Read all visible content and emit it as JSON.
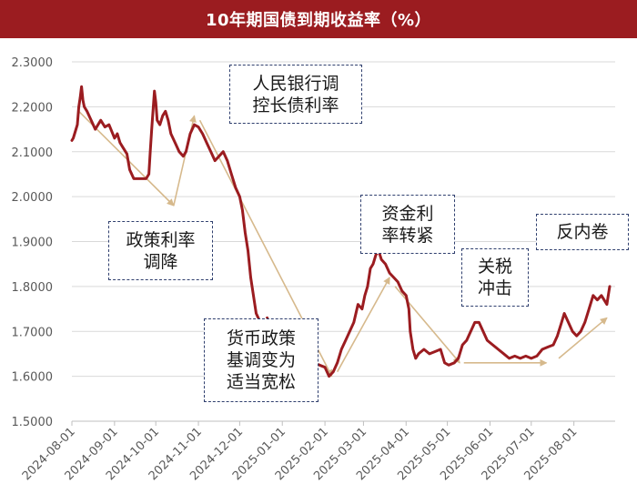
{
  "chart_data": {
    "type": "line",
    "title": "10年期国债到期收益率（%）",
    "xlabel": "",
    "ylabel": "",
    "ylim": [
      1.5,
      2.3
    ],
    "yticks": [
      "1.5000",
      "1.6000",
      "1.7000",
      "1.8000",
      "1.9000",
      "2.0000",
      "2.1000",
      "2.2000",
      "2.3000"
    ],
    "xticks": [
      "2024-08-01",
      "2024-09-01",
      "2024-10-01",
      "2024-11-01",
      "2024-12-01",
      "2025-01-01",
      "2025-02-01",
      "2025-03-01",
      "2025-04-01",
      "2025-05-01",
      "2025-06-01",
      "2025-07-01",
      "2025-08-01"
    ],
    "grid": "horizontal",
    "legend": "none",
    "series": [
      {
        "color": "#9b1c20",
        "points": [
          [
            "2024-08-01",
            2.125
          ],
          [
            "2024-08-02",
            2.13
          ],
          [
            "2024-08-03",
            2.14
          ],
          [
            "2024-08-05",
            2.16
          ],
          [
            "2024-08-06",
            2.2
          ],
          [
            "2024-08-07",
            2.22
          ],
          [
            "2024-08-08",
            2.245
          ],
          [
            "2024-08-09",
            2.215
          ],
          [
            "2024-08-10",
            2.2
          ],
          [
            "2024-08-12",
            2.19
          ],
          [
            "2024-08-15",
            2.17
          ],
          [
            "2024-08-18",
            2.15
          ],
          [
            "2024-08-22",
            2.17
          ],
          [
            "2024-08-25",
            2.155
          ],
          [
            "2024-08-28",
            2.16
          ],
          [
            "2024-09-01",
            2.13
          ],
          [
            "2024-09-03",
            2.14
          ],
          [
            "2024-09-05",
            2.12
          ],
          [
            "2024-09-07",
            2.11
          ],
          [
            "2024-09-10",
            2.095
          ],
          [
            "2024-09-12",
            2.06
          ],
          [
            "2024-09-15",
            2.04
          ],
          [
            "2024-09-20",
            2.04
          ],
          [
            "2024-09-24",
            2.04
          ],
          [
            "2024-09-26",
            2.05
          ],
          [
            "2024-09-27",
            2.1
          ],
          [
            "2024-09-28",
            2.15
          ],
          [
            "2024-09-30",
            2.235
          ],
          [
            "2024-10-01",
            2.21
          ],
          [
            "2024-10-02",
            2.17
          ],
          [
            "2024-10-04",
            2.16
          ],
          [
            "2024-10-06",
            2.18
          ],
          [
            "2024-10-08",
            2.19
          ],
          [
            "2024-10-10",
            2.17
          ],
          [
            "2024-10-12",
            2.14
          ],
          [
            "2024-10-15",
            2.12
          ],
          [
            "2024-10-18",
            2.1
          ],
          [
            "2024-10-21",
            2.09
          ],
          [
            "2024-10-23",
            2.1
          ],
          [
            "2024-10-26",
            2.14
          ],
          [
            "2024-10-29",
            2.16
          ],
          [
            "2024-11-01",
            2.155
          ],
          [
            "2024-11-04",
            2.14
          ],
          [
            "2024-11-07",
            2.12
          ],
          [
            "2024-11-10",
            2.1
          ],
          [
            "2024-11-13",
            2.08
          ],
          [
            "2024-11-16",
            2.09
          ],
          [
            "2024-11-19",
            2.1
          ],
          [
            "2024-11-22",
            2.08
          ],
          [
            "2024-11-25",
            2.05
          ],
          [
            "2024-11-28",
            2.02
          ],
          [
            "2024-12-01",
            2.0
          ],
          [
            "2024-12-03",
            1.97
          ],
          [
            "2024-12-05",
            1.92
          ],
          [
            "2024-12-07",
            1.88
          ],
          [
            "2024-12-09",
            1.82
          ],
          [
            "2024-12-11",
            1.78
          ],
          [
            "2024-12-13",
            1.74
          ],
          [
            "2024-12-16",
            1.72
          ],
          [
            "2024-12-19",
            1.7
          ],
          [
            "2024-12-21",
            1.73
          ],
          [
            "2024-12-24",
            1.7
          ],
          [
            "2024-12-27",
            1.68
          ],
          [
            "2024-12-30",
            1.67
          ],
          [
            "2025-01-02",
            1.63
          ],
          [
            "2025-01-04",
            1.64
          ],
          [
            "2025-01-07",
            1.66
          ],
          [
            "2025-01-10",
            1.64
          ],
          [
            "2025-01-13",
            1.65
          ],
          [
            "2025-01-16",
            1.67
          ],
          [
            "2025-01-19",
            1.66
          ],
          [
            "2025-01-22",
            1.65
          ],
          [
            "2025-01-25",
            1.63
          ],
          [
            "2025-01-28",
            1.625
          ],
          [
            "2025-02-01",
            1.62
          ],
          [
            "2025-02-04",
            1.6
          ],
          [
            "2025-02-07",
            1.61
          ],
          [
            "2025-02-10",
            1.63
          ],
          [
            "2025-02-13",
            1.66
          ],
          [
            "2025-02-16",
            1.68
          ],
          [
            "2025-02-19",
            1.7
          ],
          [
            "2025-02-22",
            1.72
          ],
          [
            "2025-02-25",
            1.76
          ],
          [
            "2025-02-28",
            1.75
          ],
          [
            "2025-03-02",
            1.78
          ],
          [
            "2025-03-04",
            1.8
          ],
          [
            "2025-03-06",
            1.84
          ],
          [
            "2025-03-08",
            1.85
          ],
          [
            "2025-03-10",
            1.87
          ],
          [
            "2025-03-12",
            1.88
          ],
          [
            "2025-03-14",
            1.86
          ],
          [
            "2025-03-17",
            1.85
          ],
          [
            "2025-03-20",
            1.83
          ],
          [
            "2025-03-23",
            1.82
          ],
          [
            "2025-03-26",
            1.81
          ],
          [
            "2025-03-29",
            1.79
          ],
          [
            "2025-04-01",
            1.78
          ],
          [
            "2025-04-03",
            1.75
          ],
          [
            "2025-04-04",
            1.7
          ],
          [
            "2025-04-06",
            1.66
          ],
          [
            "2025-04-08",
            1.64
          ],
          [
            "2025-04-10",
            1.65
          ],
          [
            "2025-04-14",
            1.66
          ],
          [
            "2025-04-18",
            1.65
          ],
          [
            "2025-04-22",
            1.655
          ],
          [
            "2025-04-26",
            1.66
          ],
          [
            "2025-04-29",
            1.63
          ],
          [
            "2025-05-02",
            1.625
          ],
          [
            "2025-05-06",
            1.63
          ],
          [
            "2025-05-09",
            1.64
          ],
          [
            "2025-05-12",
            1.67
          ],
          [
            "2025-05-15",
            1.68
          ],
          [
            "2025-05-18",
            1.7
          ],
          [
            "2025-05-21",
            1.72
          ],
          [
            "2025-05-24",
            1.72
          ],
          [
            "2025-05-27",
            1.7
          ],
          [
            "2025-05-30",
            1.68
          ],
          [
            "2025-06-03",
            1.67
          ],
          [
            "2025-06-07",
            1.66
          ],
          [
            "2025-06-11",
            1.65
          ],
          [
            "2025-06-15",
            1.64
          ],
          [
            "2025-06-19",
            1.645
          ],
          [
            "2025-06-23",
            1.64
          ],
          [
            "2025-06-27",
            1.645
          ],
          [
            "2025-07-01",
            1.64
          ],
          [
            "2025-07-05",
            1.645
          ],
          [
            "2025-07-09",
            1.66
          ],
          [
            "2025-07-13",
            1.665
          ],
          [
            "2025-07-17",
            1.67
          ],
          [
            "2025-07-20",
            1.69
          ],
          [
            "2025-07-23",
            1.72
          ],
          [
            "2025-07-25",
            1.74
          ],
          [
            "2025-07-28",
            1.72
          ],
          [
            "2025-07-31",
            1.7
          ],
          [
            "2025-08-03",
            1.69
          ],
          [
            "2025-08-06",
            1.7
          ],
          [
            "2025-08-09",
            1.72
          ],
          [
            "2025-08-12",
            1.75
          ],
          [
            "2025-08-15",
            1.78
          ],
          [
            "2025-08-18",
            1.77
          ],
          [
            "2025-08-21",
            1.78
          ],
          [
            "2025-08-23",
            1.77
          ],
          [
            "2025-08-25",
            1.76
          ],
          [
            "2025-08-26",
            1.78
          ],
          [
            "2025-08-27",
            1.8
          ]
        ]
      }
    ],
    "trend_arrows": {
      "color": "#d6b98c",
      "segments": [
        [
          [
            "2024-08-06",
            2.19
          ],
          [
            "2024-10-14",
            1.98
          ]
        ],
        [
          [
            "2024-10-14",
            1.98
          ],
          [
            "2024-10-29",
            2.18
          ]
        ],
        [
          [
            "2024-11-02",
            2.17
          ],
          [
            "2025-02-06",
            1.6
          ]
        ],
        [
          [
            "2025-02-10",
            1.61
          ],
          [
            "2025-03-20",
            1.82
          ]
        ],
        [
          [
            "2025-03-24",
            1.8
          ],
          [
            "2025-05-10",
            1.63
          ]
        ],
        [
          [
            "2025-05-13",
            1.63
          ],
          [
            "2025-07-12",
            1.63
          ]
        ],
        [
          [
            "2025-07-21",
            1.64
          ],
          [
            "2025-08-25",
            1.73
          ]
        ]
      ]
    },
    "annotations": [
      {
        "lines": [
          "政策利率",
          "调降"
        ]
      },
      {
        "lines": [
          "人民银行调",
          "控长债利率"
        ]
      },
      {
        "lines": [
          "货币政策",
          "基调变为",
          "适当宽松"
        ]
      },
      {
        "lines": [
          "资金利",
          "率转紧"
        ]
      },
      {
        "lines": [
          "关税",
          "冲击"
        ]
      },
      {
        "lines": [
          "反内卷"
        ]
      }
    ]
  }
}
